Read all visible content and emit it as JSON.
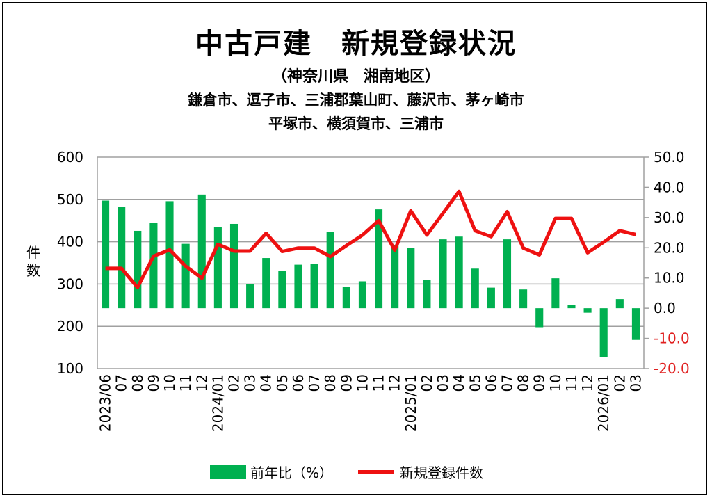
{
  "title": "中古戸建　新規登録状況",
  "subtitle_region": "（神奈川県　湘南地区）",
  "subtitle_cities_1": "鎌倉市、逗子市、三浦郡葉山町、藤沢市、茅ヶ崎市",
  "subtitle_cities_2": "平塚市、横須賀市、三浦市",
  "colors": {
    "bar": "#00b050",
    "line": "#ee1111",
    "negative_tick": "#e02020",
    "grid": "#a0a0a0"
  },
  "chart_data": {
    "type": "bar+line",
    "ylabel": "件数",
    "categories": [
      "2023/06",
      "07",
      "08",
      "09",
      "10",
      "11",
      "12",
      "2024/01",
      "02",
      "03",
      "04",
      "05",
      "06",
      "07",
      "08",
      "09",
      "10",
      "11",
      "12",
      "2025/01",
      "02",
      "03",
      "04",
      "05",
      "06",
      "07",
      "08",
      "09",
      "10",
      "11",
      "12",
      "2026/01",
      "02",
      "03"
    ],
    "y_left": {
      "range": [
        100,
        600
      ],
      "ticks": [
        "600",
        "500",
        "400",
        "300",
        "200",
        "100"
      ]
    },
    "y_right": {
      "range": [
        -20,
        50
      ],
      "ticks": [
        "50.0",
        "40.0",
        "30.0",
        "20.0",
        "10.0",
        "0.0",
        "-10.0",
        "-20.0"
      ]
    },
    "grid": true,
    "legend_position": "bottom",
    "series": [
      {
        "name": "前年比(%)",
        "type": "bar",
        "axis": "right",
        "values": [
          35.6,
          33.6,
          25.6,
          28.3,
          35.4,
          21.3,
          37.6,
          26.8,
          27.9,
          8.0,
          16.6,
          12.4,
          14.4,
          14.7,
          25.3,
          7.0,
          8.9,
          32.7,
          21.0,
          19.9,
          9.4,
          22.8,
          23.7,
          13.1,
          6.8,
          22.8,
          6.2,
          -6.3,
          9.9,
          1.1,
          -1.5,
          -16.1,
          3.0,
          -10.5
        ]
      },
      {
        "name": "新規登録件数",
        "type": "line",
        "axis": "left",
        "values": [
          337,
          337,
          292,
          366,
          381,
          342,
          314,
          394,
          378,
          378,
          420,
          377,
          385,
          385,
          365,
          391,
          416,
          450,
          380,
          473,
          416,
          467,
          519,
          426,
          412,
          471,
          385,
          369,
          455,
          455,
          374,
          399,
          426,
          417
        ]
      }
    ]
  },
  "legend": {
    "bar_label": "前年比（%）",
    "line_label": "新規登録件数"
  }
}
